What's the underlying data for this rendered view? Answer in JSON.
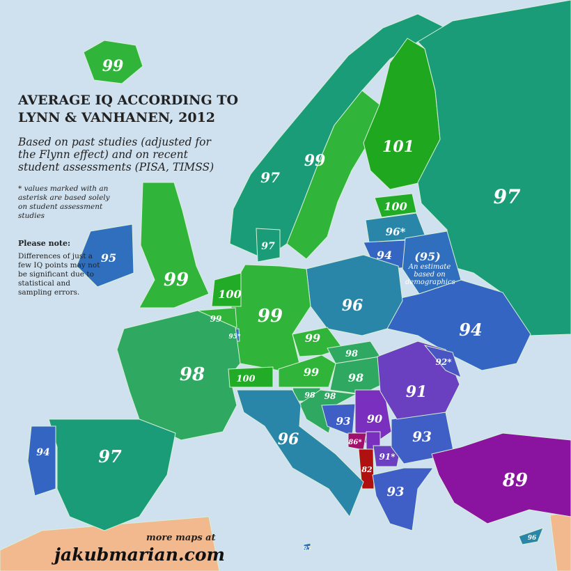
{
  "title": "AVERAGE IQ ACCORDING TO LYNN & VANHANEN, 2012",
  "subtitle": "Based on past studies (adjusted for the Flynn effect) and on recent student assessments (PISA, TIMSS)",
  "asterisk_note": "* values marked with an asterisk are based solely on student assessment studies",
  "note_heading": "Please note:",
  "note_body": "Differences of just a few IQ points may not be significant due to statistical and sampling errors.",
  "belarus_note": "An estimate based on demographics",
  "footer": {
    "more": "more maps at",
    "site": "jakubmarian.com"
  },
  "colors": {
    "sea": "#cfe0ee",
    "africa_asia": "#f2b88e",
    "iq_101": "#1fa81f",
    "iq_100": "#22ab27",
    "iq_99": "#30b43a",
    "iq_98": "#2fa862",
    "iq_97": "#1b9c78",
    "iq_96": "#2a86a8",
    "iq_95": "#2f6fbe",
    "iq_94": "#3565c2",
    "iq_93": "#3f5ec6",
    "iq_92": "#4a55c4",
    "iq_91": "#6a3fc0",
    "iq_90": "#7b2fbf",
    "iq_89": "#8a14a0",
    "iq_86": "#a0106c",
    "iq_82": "#b01010"
  },
  "regions": [
    {
      "id": "iceland",
      "label": "99"
    },
    {
      "id": "norway",
      "label": "97"
    },
    {
      "id": "sweden",
      "label": "99"
    },
    {
      "id": "finland",
      "label": "101"
    },
    {
      "id": "russia",
      "label": "97"
    },
    {
      "id": "estonia",
      "label": "100"
    },
    {
      "id": "latvia",
      "label": "96*"
    },
    {
      "id": "lithuania",
      "label": "94"
    },
    {
      "id": "belarus",
      "label": "(95)"
    },
    {
      "id": "ukraine",
      "label": "94"
    },
    {
      "id": "poland",
      "label": "96"
    },
    {
      "id": "germany",
      "label": "99"
    },
    {
      "id": "denmark",
      "label": "97"
    },
    {
      "id": "netherlands",
      "label": "100"
    },
    {
      "id": "belgium",
      "label": "99"
    },
    {
      "id": "luxembourg",
      "label": "95*"
    },
    {
      "id": "france",
      "label": "98"
    },
    {
      "id": "switzerland",
      "label": "100"
    },
    {
      "id": "austria",
      "label": "99"
    },
    {
      "id": "czechia",
      "label": "99"
    },
    {
      "id": "slovakia",
      "label": "98"
    },
    {
      "id": "hungary",
      "label": "98"
    },
    {
      "id": "slovenia",
      "label": "98"
    },
    {
      "id": "croatia",
      "label": "98"
    },
    {
      "id": "bosnia",
      "label": "93"
    },
    {
      "id": "serbia",
      "label": "90"
    },
    {
      "id": "montenegro",
      "label": "86*"
    },
    {
      "id": "kosovo",
      "label": ""
    },
    {
      "id": "albania",
      "label": "82"
    },
    {
      "id": "macedonia",
      "label": "91*"
    },
    {
      "id": "bulgaria",
      "label": "93"
    },
    {
      "id": "romania",
      "label": "91"
    },
    {
      "id": "moldova",
      "label": "92*"
    },
    {
      "id": "greece",
      "label": "93"
    },
    {
      "id": "turkey",
      "label": "89"
    },
    {
      "id": "italy",
      "label": "96"
    },
    {
      "id": "spain",
      "label": "97"
    },
    {
      "id": "portugal",
      "label": "94"
    },
    {
      "id": "uk",
      "label": "99"
    },
    {
      "id": "ireland",
      "label": "95"
    },
    {
      "id": "cyprus",
      "label": "96"
    },
    {
      "id": "malta",
      "label": "95"
    }
  ]
}
